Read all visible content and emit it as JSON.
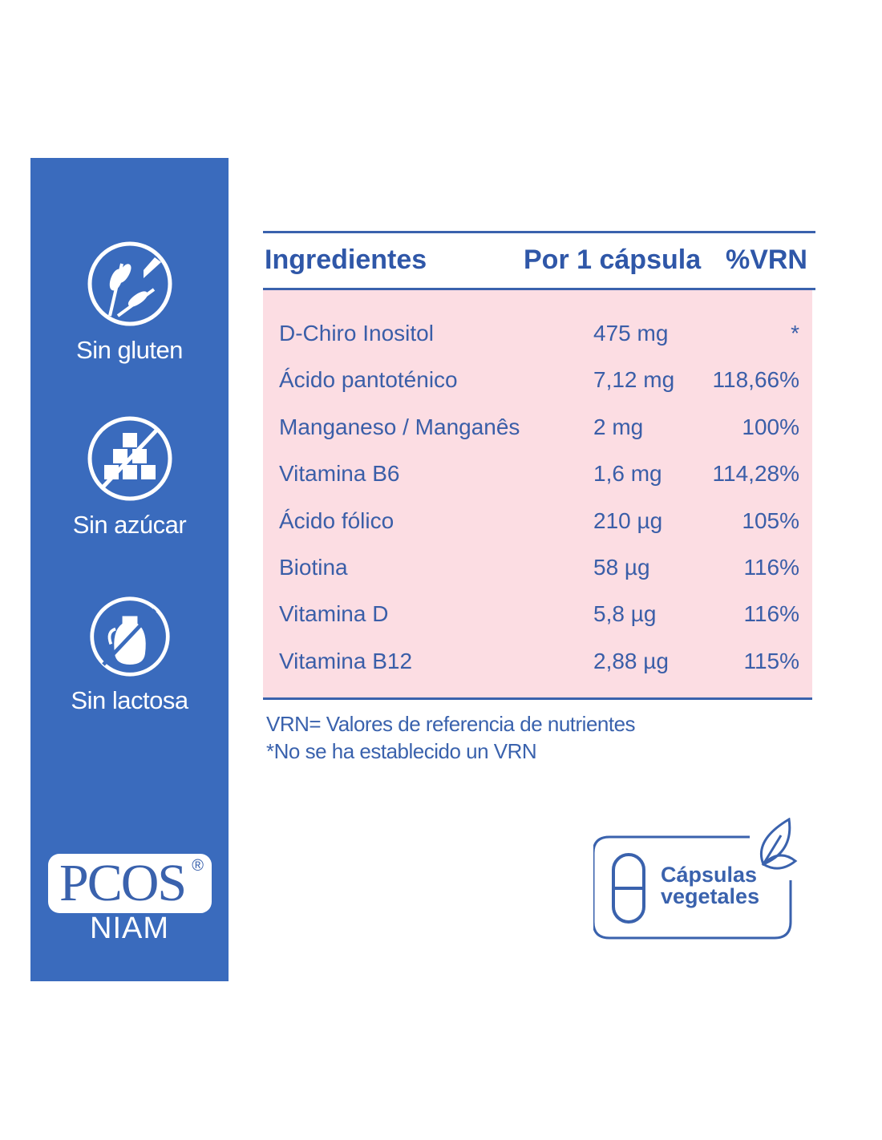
{
  "sidebar": {
    "badges": [
      {
        "label": "Sin gluten",
        "icon": "no-gluten-icon"
      },
      {
        "label": "Sin azúcar",
        "icon": "no-sugar-icon"
      },
      {
        "label": "Sin lactosa",
        "icon": "no-lactose-icon"
      }
    ],
    "logo": {
      "text": "PCOS",
      "registered": "®",
      "subtitle": "NIAM"
    }
  },
  "table": {
    "headers": [
      "Ingredientes",
      "Por 1 cápsula",
      "%VRN"
    ],
    "rows": [
      [
        "D-Chiro Inositol",
        "475 mg",
        "*"
      ],
      [
        "Ácido pantoténico",
        "7,12 mg",
        "118,66%"
      ],
      [
        "Manganeso / Manganês",
        "2 mg",
        "100%"
      ],
      [
        "Vitamina B6",
        "1,6 mg",
        "114,28%"
      ],
      [
        "Ácido fólico",
        "210 µg",
        "105%"
      ],
      [
        "Biotina",
        "58 µg",
        "116%"
      ],
      [
        "Vitamina D",
        "5,8 µg",
        "116%"
      ],
      [
        "Vitamina B12",
        "2,88 µg",
        "115%"
      ]
    ]
  },
  "notes": [
    "VRN= Valores de referencia de nutrientes",
    "*No se ha establecido un VRN"
  ],
  "veg_badge": {
    "line1": "Cápsulas",
    "line2": "vegetales"
  },
  "colors": {
    "sidebar": "#3a6bbd",
    "accent": "#3a62ad",
    "table_bg": "#fcdde3"
  }
}
